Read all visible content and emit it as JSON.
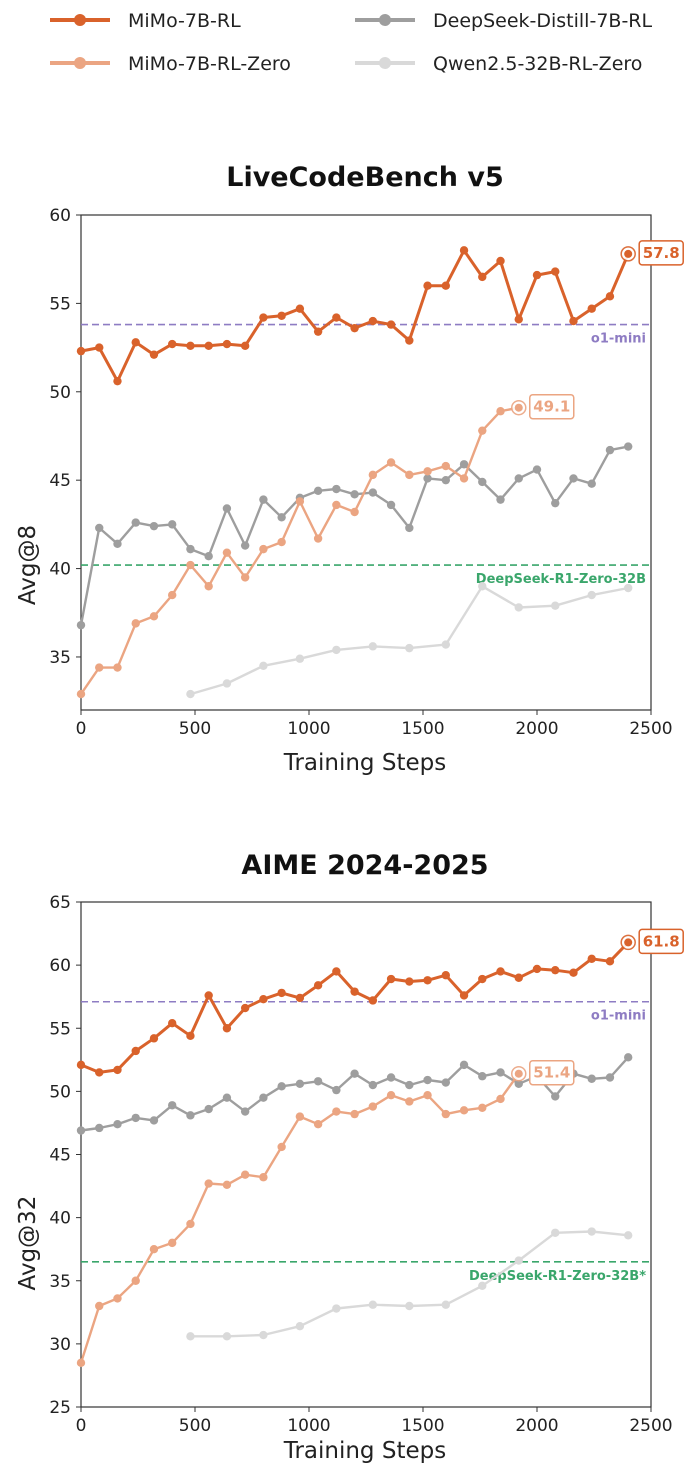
{
  "legend": [
    {
      "name": "MiMo-7B-RL",
      "color": "#d9622b"
    },
    {
      "name": "DeepSeek-Distill-7B-RL",
      "color": "#9e9e9e"
    },
    {
      "name": "MiMo-7B-RL-Zero",
      "color": "#eba582"
    },
    {
      "name": "Qwen2.5-32B-RL-Zero",
      "color": "#d9d9d9"
    }
  ],
  "chart_data": [
    {
      "type": "line",
      "title": "LiveCodeBench v5",
      "xlabel": "Training Steps",
      "ylabel": "Avg@8",
      "xlim": [
        0,
        2500
      ],
      "ylim": [
        32,
        60
      ],
      "xticks": [
        0,
        500,
        1000,
        1500,
        2000,
        2500
      ],
      "yticks": [
        35,
        40,
        45,
        50,
        55,
        60
      ],
      "reference_lines": [
        {
          "label": "o1-mini",
          "value": 53.8,
          "color": "#8e7cc3"
        },
        {
          "label": "DeepSeek-R1-Zero-32B",
          "value": 40.2,
          "color": "#3aa66b"
        }
      ],
      "series": [
        {
          "name": "MiMo-7B-RL",
          "color": "#d9622b",
          "end_label": "57.8",
          "x": [
            0,
            80,
            160,
            240,
            320,
            400,
            480,
            560,
            640,
            720,
            800,
            880,
            960,
            1040,
            1120,
            1200,
            1280,
            1360,
            1440,
            1520,
            1600,
            1680,
            1760,
            1840,
            1920,
            2000,
            2080,
            2160,
            2240,
            2320,
            2400
          ],
          "y": [
            52.3,
            52.5,
            50.6,
            52.8,
            52.1,
            52.7,
            52.6,
            52.6,
            52.7,
            52.6,
            54.2,
            54.3,
            54.7,
            53.4,
            54.2,
            53.6,
            54.0,
            53.8,
            52.9,
            56.0,
            56.0,
            58.0,
            56.5,
            57.4,
            54.1,
            56.6,
            56.8,
            54.0,
            54.7,
            55.4,
            57.8
          ]
        },
        {
          "name": "MiMo-7B-RL-Zero",
          "color": "#eba582",
          "end_label": "49.1",
          "x": [
            0,
            80,
            160,
            240,
            320,
            400,
            480,
            560,
            640,
            720,
            800,
            880,
            960,
            1040,
            1120,
            1200,
            1280,
            1360,
            1440,
            1520,
            1600,
            1680,
            1760,
            1840,
            1920
          ],
          "y": [
            32.9,
            34.4,
            34.4,
            36.9,
            37.3,
            38.5,
            40.2,
            39.0,
            40.9,
            39.5,
            41.1,
            41.5,
            43.8,
            41.7,
            43.6,
            43.2,
            45.3,
            46.0,
            45.3,
            45.5,
            45.8,
            45.1,
            47.8,
            48.9,
            49.1
          ]
        },
        {
          "name": "DeepSeek-Distill-7B-RL",
          "color": "#9e9e9e",
          "x": [
            0,
            80,
            160,
            240,
            320,
            400,
            480,
            560,
            640,
            720,
            800,
            880,
            960,
            1040,
            1120,
            1200,
            1280,
            1360,
            1440,
            1520,
            1600,
            1680,
            1760,
            1840,
            1920,
            2000,
            2080,
            2160,
            2240,
            2320,
            2400
          ],
          "y": [
            36.8,
            42.3,
            41.4,
            42.6,
            42.4,
            42.5,
            41.1,
            40.7,
            43.4,
            41.3,
            43.9,
            42.9,
            44.0,
            44.4,
            44.5,
            44.2,
            44.3,
            43.6,
            42.3,
            45.1,
            45.0,
            45.9,
            44.9,
            43.9,
            45.1,
            45.6,
            43.7,
            45.1,
            44.8,
            46.7,
            46.9
          ]
        },
        {
          "name": "Qwen2.5-32B-RL-Zero",
          "color": "#d9d9d9",
          "x": [
            480,
            640,
            800,
            960,
            1120,
            1280,
            1440,
            1600,
            1760,
            1920,
            2080,
            2240,
            2400
          ],
          "y": [
            32.9,
            33.5,
            34.5,
            34.9,
            35.4,
            35.6,
            35.5,
            35.7,
            39.0,
            37.8,
            37.9,
            38.5,
            38.9
          ]
        }
      ]
    },
    {
      "type": "line",
      "title": "AIME 2024-2025",
      "xlabel": "Training Steps",
      "ylabel": "Avg@32",
      "xlim": [
        0,
        2500
      ],
      "ylim": [
        25,
        65
      ],
      "xticks": [
        0,
        500,
        1000,
        1500,
        2000,
        2500
      ],
      "yticks": [
        25,
        30,
        35,
        40,
        45,
        50,
        55,
        60,
        65
      ],
      "reference_lines": [
        {
          "label": "o1-mini",
          "value": 57.1,
          "color": "#8e7cc3"
        },
        {
          "label": "DeepSeek-R1-Zero-32B*",
          "value": 36.5,
          "color": "#3aa66b"
        }
      ],
      "series": [
        {
          "name": "MiMo-7B-RL",
          "color": "#d9622b",
          "end_label": "61.8",
          "x": [
            0,
            80,
            160,
            240,
            320,
            400,
            480,
            560,
            640,
            720,
            800,
            880,
            960,
            1040,
            1120,
            1200,
            1280,
            1360,
            1440,
            1520,
            1600,
            1680,
            1760,
            1840,
            1920,
            2000,
            2080,
            2160,
            2240,
            2320,
            2400
          ],
          "y": [
            52.1,
            51.5,
            51.7,
            53.2,
            54.2,
            55.4,
            54.4,
            57.6,
            55.0,
            56.6,
            57.3,
            57.8,
            57.4,
            58.4,
            59.5,
            57.9,
            57.2,
            58.9,
            58.7,
            58.8,
            59.2,
            57.6,
            58.9,
            59.5,
            59.0,
            59.7,
            59.6,
            59.4,
            60.5,
            60.3,
            61.8
          ]
        },
        {
          "name": "MiMo-7B-RL-Zero",
          "color": "#eba582",
          "end_label": "51.4",
          "x": [
            0,
            80,
            160,
            240,
            320,
            400,
            480,
            560,
            640,
            720,
            800,
            880,
            960,
            1040,
            1120,
            1200,
            1280,
            1360,
            1440,
            1520,
            1600,
            1680,
            1760,
            1840,
            1920
          ],
          "y": [
            28.5,
            33.0,
            33.6,
            35.0,
            37.5,
            38.0,
            39.5,
            42.7,
            42.6,
            43.4,
            43.2,
            45.6,
            48.0,
            47.4,
            48.4,
            48.2,
            48.8,
            49.7,
            49.2,
            49.7,
            48.2,
            48.5,
            48.7,
            49.4,
            51.4
          ]
        },
        {
          "name": "DeepSeek-Distill-7B-RL",
          "color": "#9e9e9e",
          "x": [
            0,
            80,
            160,
            240,
            320,
            400,
            480,
            560,
            640,
            720,
            800,
            880,
            960,
            1040,
            1120,
            1200,
            1280,
            1360,
            1440,
            1520,
            1600,
            1680,
            1760,
            1840,
            1920,
            2000,
            2080,
            2160,
            2240,
            2320,
            2400
          ],
          "y": [
            46.9,
            47.1,
            47.4,
            47.9,
            47.7,
            48.9,
            48.1,
            48.6,
            49.5,
            48.4,
            49.5,
            50.4,
            50.6,
            50.8,
            50.1,
            51.4,
            50.5,
            51.1,
            50.5,
            50.9,
            50.7,
            52.1,
            51.2,
            51.5,
            50.6,
            51.2,
            49.6,
            51.4,
            51.0,
            51.1,
            52.7
          ]
        },
        {
          "name": "Qwen2.5-32B-RL-Zero",
          "color": "#d9d9d9",
          "x": [
            480,
            640,
            800,
            960,
            1120,
            1280,
            1440,
            1600,
            1760,
            1920,
            2080,
            2240,
            2400
          ],
          "y": [
            30.6,
            30.6,
            30.7,
            31.4,
            32.8,
            33.1,
            33.0,
            33.1,
            34.6,
            36.6,
            38.8,
            38.9,
            38.6
          ]
        }
      ]
    }
  ]
}
